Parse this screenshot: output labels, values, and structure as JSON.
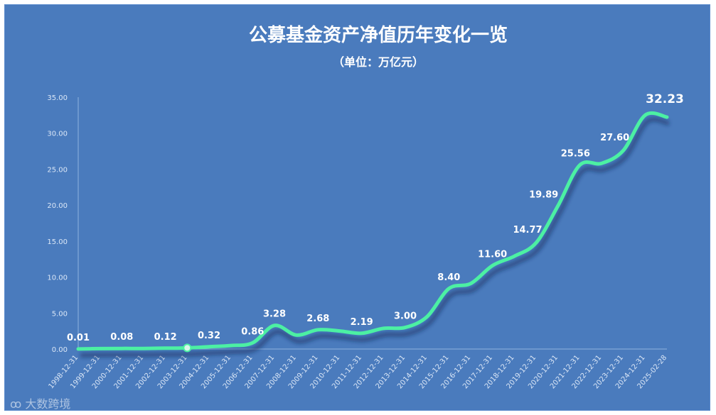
{
  "chart_data": {
    "type": "line",
    "title": "公募基金资产净值历年变化一览",
    "subtitle": "（单位：万亿元）",
    "categories": [
      "1998-12-31",
      "1999-12-31",
      "2000-12-31",
      "2001-12-31",
      "2002-12-31",
      "2003-12-31",
      "2004-12-31",
      "2005-12-31",
      "2006-12-31",
      "2007-12-31",
      "2008-12-31",
      "2009-12-31",
      "2010-12-31",
      "2011-12-31",
      "2012-12-31",
      "2013-12-31",
      "2014-12-31",
      "2015-12-31",
      "2016-12-31",
      "2017-12-31",
      "2018-12-31",
      "2019-12-31",
      "2020-12-31",
      "2021-12-31",
      "2022-12-31",
      "2023-12-31",
      "2024-12-31",
      "2025-02-28"
    ],
    "values": [
      0.01,
      0.06,
      0.08,
      0.08,
      0.12,
      0.16,
      0.32,
      0.48,
      0.86,
      3.28,
      1.94,
      2.68,
      2.5,
      2.19,
      2.87,
      3.0,
      4.5,
      8.4,
      9.1,
      11.6,
      12.9,
      14.77,
      19.89,
      25.56,
      25.8,
      27.6,
      32.5,
      32.23
    ],
    "data_labels": [
      {
        "index": 0,
        "text": "0.01"
      },
      {
        "index": 2,
        "text": "0.08"
      },
      {
        "index": 4,
        "text": "0.12"
      },
      {
        "index": 6,
        "text": "0.32"
      },
      {
        "index": 8,
        "text": "0.86"
      },
      {
        "index": 9,
        "text": "3.28"
      },
      {
        "index": 11,
        "text": "2.68"
      },
      {
        "index": 13,
        "text": "2.19"
      },
      {
        "index": 15,
        "text": "3.00"
      },
      {
        "index": 17,
        "text": "8.40"
      },
      {
        "index": 19,
        "text": "11.60"
      },
      {
        "index": 21,
        "text": "14.77"
      },
      {
        "index": 22,
        "text": "19.89"
      },
      {
        "index": 23,
        "text": "25.56"
      },
      {
        "index": 25,
        "text": "27.60"
      },
      {
        "index": 27,
        "text": "32.23"
      }
    ],
    "yticks": [
      "0.00",
      "5.00",
      "10.00",
      "15.00",
      "20.00",
      "25.00",
      "30.00",
      "35.00"
    ],
    "ylim": [
      0,
      35
    ],
    "grid": false,
    "colors": {
      "background": "#4a7bbd",
      "line": "#4cf0a3",
      "text": "#ffffff"
    }
  },
  "watermark": "大数跨境"
}
